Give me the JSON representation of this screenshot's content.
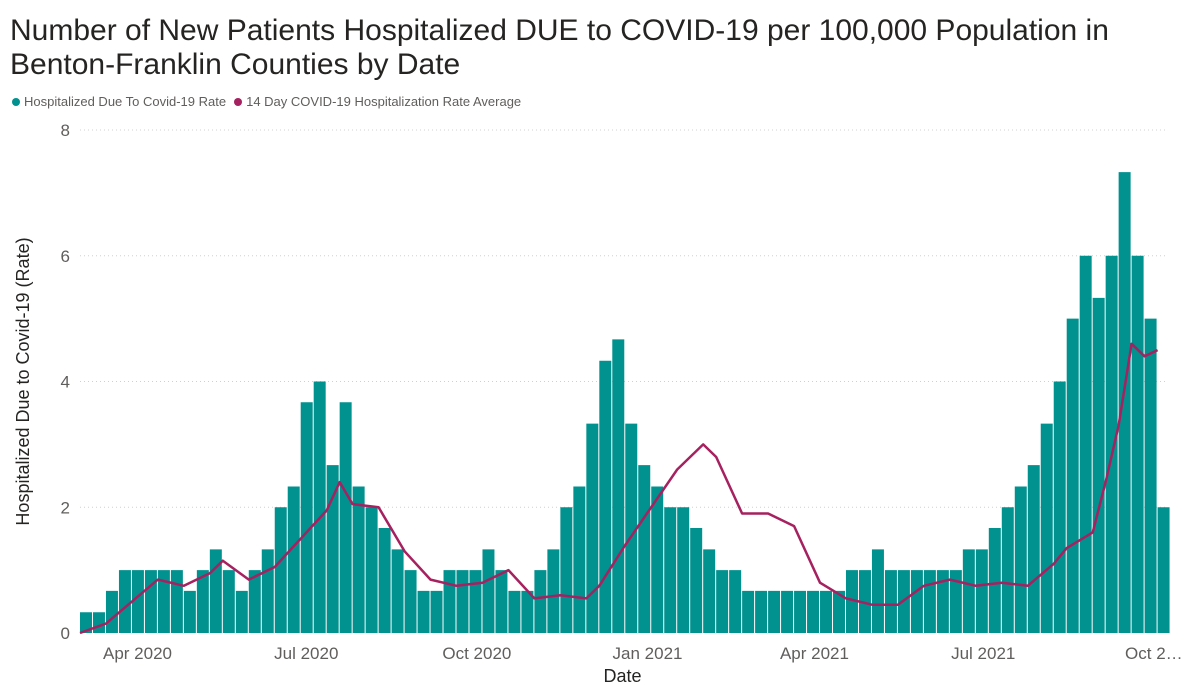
{
  "chart_data": {
    "type": "bar",
    "title": "Number of New Patients Hospitalized DUE to COVID-19 per 100,000 Population in Benton-Franklin Counties by Date",
    "xlabel": "Date",
    "ylabel": "Hospitalized Due to Covid-19 (Rate)",
    "ylim": [
      0,
      8
    ],
    "yticks": [
      0,
      2,
      4,
      6,
      8
    ],
    "xlim": [
      "2020-03-01",
      "2021-10-07"
    ],
    "xticks": [
      {
        "date": "2020-04-01",
        "label": "Apr 2020"
      },
      {
        "date": "2020-07-01",
        "label": "Jul 2020"
      },
      {
        "date": "2020-10-01",
        "label": "Oct 2020"
      },
      {
        "date": "2021-01-01",
        "label": "Jan 2021"
      },
      {
        "date": "2021-04-01",
        "label": "Apr 2021"
      },
      {
        "date": "2021-07-01",
        "label": "Jul 2021"
      },
      {
        "date": "2021-10-01",
        "label": "Oct 2…"
      }
    ],
    "gridlines": true,
    "legend_position": "top-left",
    "series": [
      {
        "name": "Hospitalized Due To Covid-19 Rate",
        "kind": "bar",
        "color": "#01918f",
        "points": [
          [
            "2020-03-01",
            0.33
          ],
          [
            "2020-03-08",
            0.33
          ],
          [
            "2020-03-15",
            0.67
          ],
          [
            "2020-03-22",
            1.0
          ],
          [
            "2020-03-29",
            1.0
          ],
          [
            "2020-04-05",
            1.0
          ],
          [
            "2020-04-12",
            1.0
          ],
          [
            "2020-04-19",
            1.0
          ],
          [
            "2020-04-26",
            0.67
          ],
          [
            "2020-05-03",
            1.0
          ],
          [
            "2020-05-10",
            1.33
          ],
          [
            "2020-05-17",
            1.0
          ],
          [
            "2020-05-24",
            0.67
          ],
          [
            "2020-05-31",
            1.0
          ],
          [
            "2020-06-07",
            1.33
          ],
          [
            "2020-06-14",
            2.0
          ],
          [
            "2020-06-21",
            2.33
          ],
          [
            "2020-06-28",
            3.67
          ],
          [
            "2020-07-05",
            4.0
          ],
          [
            "2020-07-12",
            2.67
          ],
          [
            "2020-07-19",
            3.67
          ],
          [
            "2020-07-26",
            2.33
          ],
          [
            "2020-08-02",
            2.0
          ],
          [
            "2020-08-09",
            1.67
          ],
          [
            "2020-08-16",
            1.33
          ],
          [
            "2020-08-23",
            1.0
          ],
          [
            "2020-08-30",
            0.67
          ],
          [
            "2020-09-06",
            0.67
          ],
          [
            "2020-09-13",
            1.0
          ],
          [
            "2020-09-20",
            1.0
          ],
          [
            "2020-09-27",
            1.0
          ],
          [
            "2020-10-04",
            1.33
          ],
          [
            "2020-10-11",
            1.0
          ],
          [
            "2020-10-18",
            0.67
          ],
          [
            "2020-10-25",
            0.67
          ],
          [
            "2020-11-01",
            1.0
          ],
          [
            "2020-11-08",
            1.33
          ],
          [
            "2020-11-15",
            2.0
          ],
          [
            "2020-11-22",
            2.33
          ],
          [
            "2020-11-29",
            3.33
          ],
          [
            "2020-12-06",
            4.33
          ],
          [
            "2020-12-13",
            4.67
          ],
          [
            "2020-12-20",
            3.33
          ],
          [
            "2020-12-27",
            2.67
          ],
          [
            "2021-01-03",
            2.33
          ],
          [
            "2021-01-10",
            2.0
          ],
          [
            "2021-01-17",
            2.0
          ],
          [
            "2021-01-24",
            1.67
          ],
          [
            "2021-01-31",
            1.33
          ],
          [
            "2021-02-07",
            1.0
          ],
          [
            "2021-02-14",
            1.0
          ],
          [
            "2021-02-21",
            0.67
          ],
          [
            "2021-02-28",
            0.67
          ],
          [
            "2021-03-07",
            0.67
          ],
          [
            "2021-03-14",
            0.67
          ],
          [
            "2021-03-21",
            0.67
          ],
          [
            "2021-03-28",
            0.67
          ],
          [
            "2021-04-04",
            0.67
          ],
          [
            "2021-04-11",
            0.67
          ],
          [
            "2021-04-18",
            1.0
          ],
          [
            "2021-04-25",
            1.0
          ],
          [
            "2021-05-02",
            1.33
          ],
          [
            "2021-05-09",
            1.0
          ],
          [
            "2021-05-16",
            1.0
          ],
          [
            "2021-05-23",
            1.0
          ],
          [
            "2021-05-30",
            1.0
          ],
          [
            "2021-06-06",
            1.0
          ],
          [
            "2021-06-13",
            1.0
          ],
          [
            "2021-06-20",
            1.33
          ],
          [
            "2021-06-27",
            1.33
          ],
          [
            "2021-07-04",
            1.67
          ],
          [
            "2021-07-11",
            2.0
          ],
          [
            "2021-07-18",
            2.33
          ],
          [
            "2021-07-25",
            2.67
          ],
          [
            "2021-08-01",
            3.33
          ],
          [
            "2021-08-08",
            4.0
          ],
          [
            "2021-08-15",
            5.0
          ],
          [
            "2021-08-22",
            6.0
          ],
          [
            "2021-08-29",
            5.33
          ],
          [
            "2021-09-05",
            6.0
          ],
          [
            "2021-09-12",
            7.33
          ],
          [
            "2021-09-19",
            6.0
          ],
          [
            "2021-09-26",
            5.0
          ],
          [
            "2021-10-03",
            2.0
          ]
        ]
      },
      {
        "name": "14 Day COVID-19 Hospitalization Rate Average",
        "kind": "line",
        "color": "#a6215f",
        "points": [
          [
            "2020-03-01",
            0.0
          ],
          [
            "2020-03-15",
            0.15
          ],
          [
            "2020-03-29",
            0.5
          ],
          [
            "2020-04-12",
            0.85
          ],
          [
            "2020-04-26",
            0.75
          ],
          [
            "2020-05-10",
            0.95
          ],
          [
            "2020-05-17",
            1.15
          ],
          [
            "2020-05-31",
            0.85
          ],
          [
            "2020-06-14",
            1.05
          ],
          [
            "2020-06-28",
            1.5
          ],
          [
            "2020-07-12",
            1.95
          ],
          [
            "2020-07-19",
            2.4
          ],
          [
            "2020-07-26",
            2.05
          ],
          [
            "2020-08-09",
            2.0
          ],
          [
            "2020-08-23",
            1.3
          ],
          [
            "2020-09-06",
            0.85
          ],
          [
            "2020-09-20",
            0.75
          ],
          [
            "2020-10-04",
            0.8
          ],
          [
            "2020-10-18",
            1.0
          ],
          [
            "2020-11-01",
            0.55
          ],
          [
            "2020-11-15",
            0.6
          ],
          [
            "2020-11-29",
            0.55
          ],
          [
            "2020-12-06",
            0.75
          ],
          [
            "2020-12-20",
            1.4
          ],
          [
            "2021-01-03",
            2.0
          ],
          [
            "2021-01-17",
            2.6
          ],
          [
            "2021-01-31",
            3.0
          ],
          [
            "2021-02-07",
            2.8
          ],
          [
            "2021-02-21",
            1.9
          ],
          [
            "2021-03-07",
            1.9
          ],
          [
            "2021-03-21",
            1.7
          ],
          [
            "2021-04-04",
            0.8
          ],
          [
            "2021-04-18",
            0.55
          ],
          [
            "2021-05-02",
            0.45
          ],
          [
            "2021-05-16",
            0.45
          ],
          [
            "2021-05-30",
            0.75
          ],
          [
            "2021-06-13",
            0.85
          ],
          [
            "2021-06-27",
            0.75
          ],
          [
            "2021-07-11",
            0.8
          ],
          [
            "2021-07-25",
            0.75
          ],
          [
            "2021-08-08",
            1.1
          ],
          [
            "2021-08-15",
            1.35
          ],
          [
            "2021-08-29",
            1.6
          ],
          [
            "2021-09-05",
            2.4
          ],
          [
            "2021-09-12",
            3.3
          ],
          [
            "2021-09-19",
            4.6
          ],
          [
            "2021-09-26",
            4.4
          ],
          [
            "2021-10-03",
            4.5
          ]
        ]
      }
    ]
  }
}
